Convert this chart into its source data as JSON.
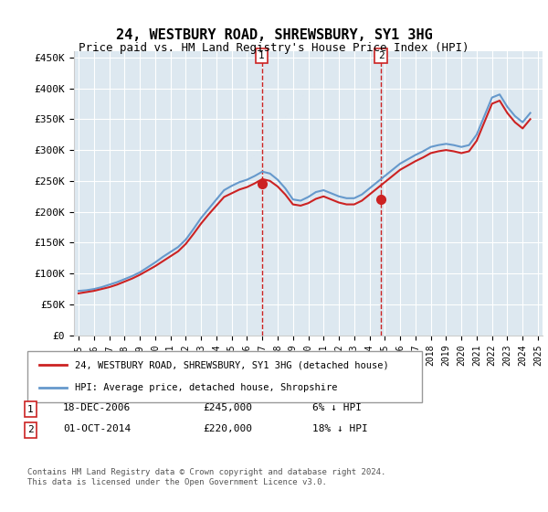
{
  "title": "24, WESTBURY ROAD, SHREWSBURY, SY1 3HG",
  "subtitle": "Price paid vs. HM Land Registry's House Price Index (HPI)",
  "ylabel_ticks": [
    "£0",
    "£50K",
    "£100K",
    "£150K",
    "£200K",
    "£250K",
    "£300K",
    "£350K",
    "£400K",
    "£450K"
  ],
  "ylim": [
    0,
    460000
  ],
  "yticks": [
    0,
    50000,
    100000,
    150000,
    200000,
    250000,
    300000,
    350000,
    400000,
    450000
  ],
  "background_color": "#dde8f0",
  "plot_bg_color": "#dde8f0",
  "legend_label_red": "24, WESTBURY ROAD, SHREWSBURY, SY1 3HG (detached house)",
  "legend_label_blue": "HPI: Average price, detached house, Shropshire",
  "annotation1_date": "18-DEC-2006",
  "annotation1_price": "£245,000",
  "annotation1_hpi": "6% ↓ HPI",
  "annotation2_date": "01-OCT-2014",
  "annotation2_price": "£220,000",
  "annotation2_hpi": "18% ↓ HPI",
  "footer": "Contains HM Land Registry data © Crown copyright and database right 2024.\nThis data is licensed under the Open Government Licence v3.0.",
  "sale1_x": 2006.96,
  "sale1_y": 245000,
  "sale2_x": 2014.75,
  "sale2_y": 220000,
  "hpi_x": [
    1995.0,
    1995.5,
    1996.0,
    1996.5,
    1997.0,
    1997.5,
    1998.0,
    1998.5,
    1999.0,
    1999.5,
    2000.0,
    2000.5,
    2001.0,
    2001.5,
    2002.0,
    2002.5,
    2003.0,
    2003.5,
    2004.0,
    2004.5,
    2005.0,
    2005.5,
    2006.0,
    2006.5,
    2007.0,
    2007.5,
    2008.0,
    2008.5,
    2009.0,
    2009.5,
    2010.0,
    2010.5,
    2011.0,
    2011.5,
    2012.0,
    2012.5,
    2013.0,
    2013.5,
    2014.0,
    2014.5,
    2015.0,
    2015.5,
    2016.0,
    2016.5,
    2017.0,
    2017.5,
    2018.0,
    2018.5,
    2019.0,
    2019.5,
    2020.0,
    2020.5,
    2021.0,
    2021.5,
    2022.0,
    2022.5,
    2023.0,
    2023.5,
    2024.0,
    2024.5
  ],
  "hpi_y": [
    72000,
    73000,
    75000,
    78000,
    82000,
    86000,
    91000,
    96000,
    102000,
    110000,
    118000,
    127000,
    135000,
    143000,
    155000,
    172000,
    190000,
    205000,
    220000,
    235000,
    242000,
    248000,
    252000,
    258000,
    265000,
    262000,
    252000,
    238000,
    220000,
    218000,
    224000,
    232000,
    235000,
    230000,
    225000,
    222000,
    222000,
    228000,
    238000,
    248000,
    258000,
    268000,
    278000,
    285000,
    292000,
    298000,
    305000,
    308000,
    310000,
    308000,
    305000,
    308000,
    325000,
    355000,
    385000,
    390000,
    370000,
    355000,
    345000,
    360000
  ],
  "price_x": [
    1995.0,
    1995.5,
    1996.0,
    1996.5,
    1997.0,
    1997.5,
    1998.0,
    1998.5,
    1999.0,
    1999.5,
    2000.0,
    2000.5,
    2001.0,
    2001.5,
    2002.0,
    2002.5,
    2003.0,
    2003.5,
    2004.0,
    2004.5,
    2005.0,
    2005.5,
    2006.0,
    2006.5,
    2007.0,
    2007.5,
    2008.0,
    2008.5,
    2009.0,
    2009.5,
    2010.0,
    2010.5,
    2011.0,
    2011.5,
    2012.0,
    2012.5,
    2013.0,
    2013.5,
    2014.0,
    2014.5,
    2015.0,
    2015.5,
    2016.0,
    2016.5,
    2017.0,
    2017.5,
    2018.0,
    2018.5,
    2019.0,
    2019.5,
    2020.0,
    2020.5,
    2021.0,
    2021.5,
    2022.0,
    2022.5,
    2023.0,
    2023.5,
    2024.0,
    2024.5
  ],
  "price_y": [
    68000,
    70000,
    72000,
    75000,
    78000,
    82000,
    87000,
    92000,
    98000,
    105000,
    112000,
    120000,
    128000,
    136000,
    148000,
    164000,
    181000,
    196000,
    210000,
    224000,
    230000,
    236000,
    240000,
    246000,
    253000,
    250000,
    241000,
    228000,
    212000,
    210000,
    214000,
    221000,
    225000,
    220000,
    215000,
    212000,
    212000,
    218000,
    228000,
    238000,
    248000,
    258000,
    268000,
    275000,
    282000,
    288000,
    295000,
    298000,
    300000,
    298000,
    295000,
    298000,
    315000,
    345000,
    375000,
    380000,
    360000,
    345000,
    335000,
    350000
  ],
  "xtick_labels": [
    "1995",
    "1996",
    "1997",
    "1998",
    "1999",
    "2000",
    "2001",
    "2002",
    "2003",
    "2004",
    "2005",
    "2006",
    "2007",
    "2008",
    "2009",
    "2010",
    "2011",
    "2012",
    "2013",
    "2014",
    "2015",
    "2016",
    "2017",
    "2018",
    "2019",
    "2020",
    "2021",
    "2022",
    "2023",
    "2024",
    "2025"
  ],
  "xtick_positions": [
    1995,
    1996,
    1997,
    1998,
    1999,
    2000,
    2001,
    2002,
    2003,
    2004,
    2005,
    2006,
    2007,
    2008,
    2009,
    2010,
    2011,
    2012,
    2013,
    2014,
    2015,
    2016,
    2017,
    2018,
    2019,
    2020,
    2021,
    2022,
    2023,
    2024,
    2025
  ]
}
